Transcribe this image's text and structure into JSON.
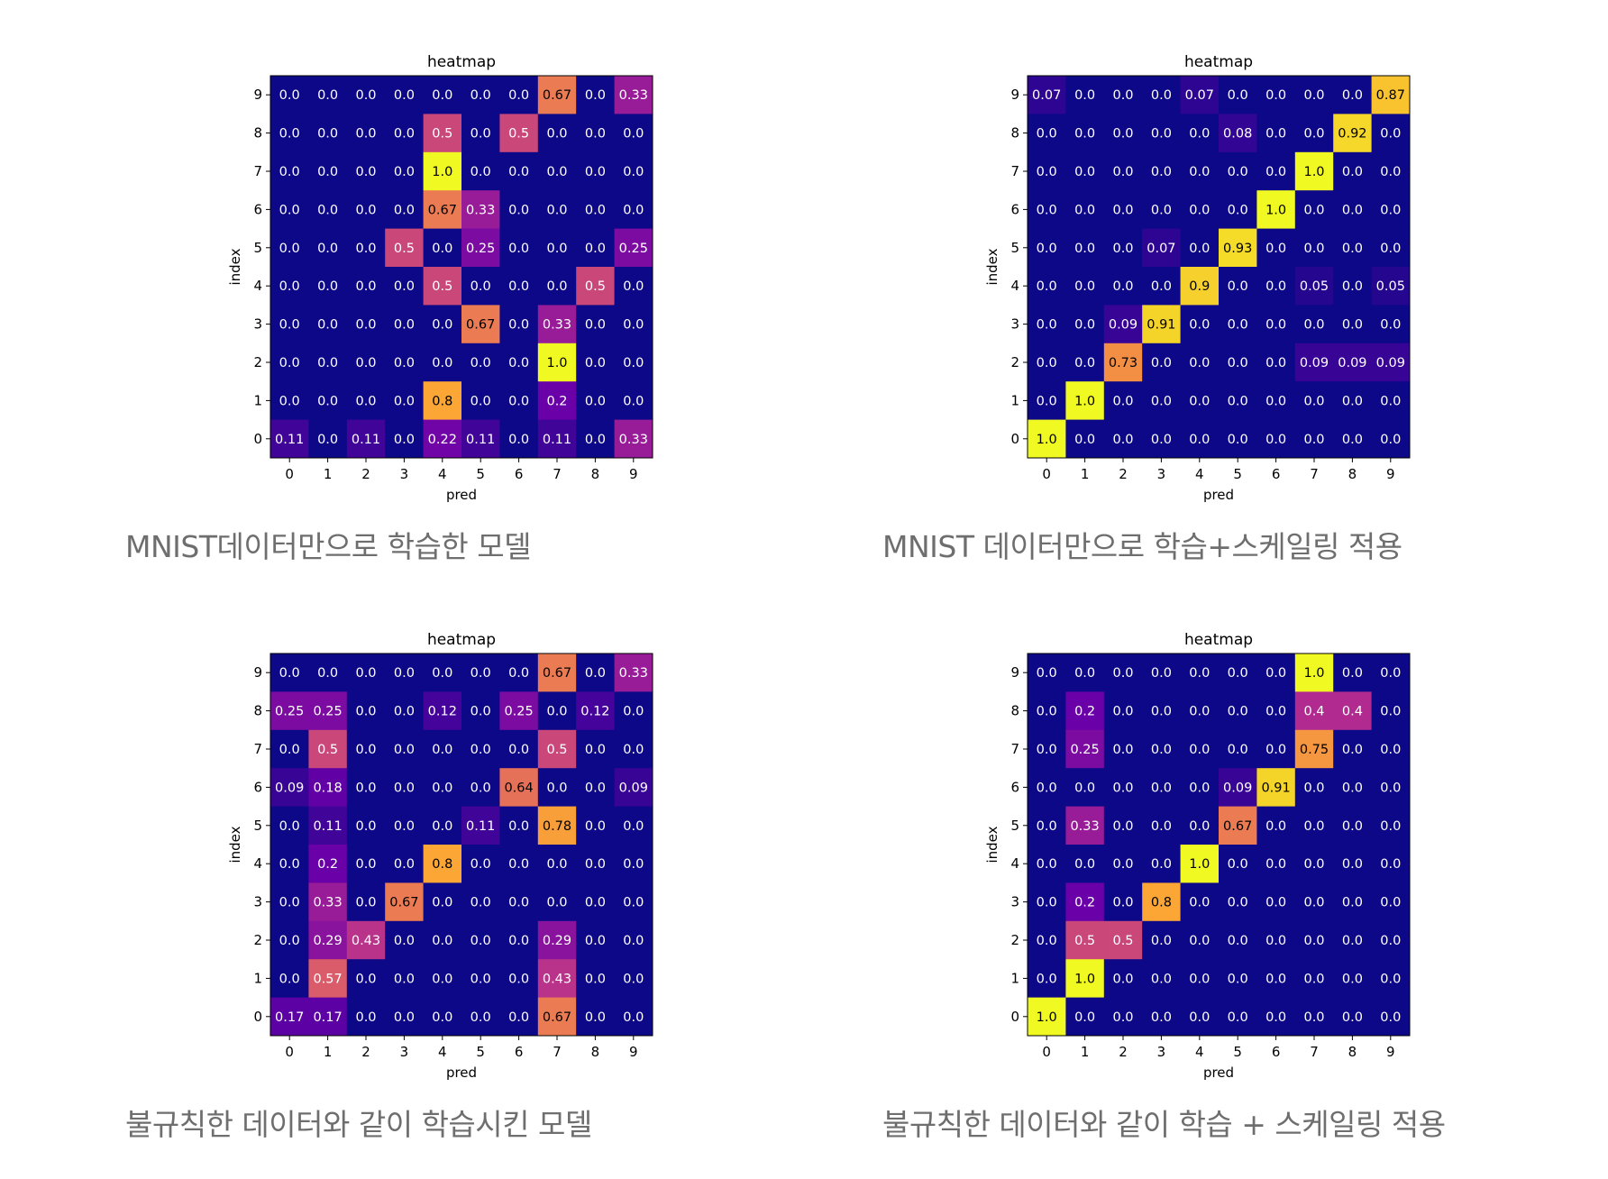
{
  "colormap": [
    "#0d0887",
    "#6a00a8",
    "#b12a90",
    "#e16462",
    "#fca636",
    "#f0f921"
  ],
  "chart_data": [
    {
      "type": "heatmap",
      "title": "heatmap",
      "xlabel": "pred",
      "ylabel": "index",
      "x_ticks": [
        "0",
        "1",
        "2",
        "3",
        "4",
        "5",
        "6",
        "7",
        "8",
        "9"
      ],
      "y_ticks": [
        "0",
        "1",
        "2",
        "3",
        "4",
        "5",
        "6",
        "7",
        "8",
        "9"
      ],
      "colormap": "plasma",
      "caption": "MNIST데이터만으로 학습한 모델",
      "rows": [
        {
          "index": "9",
          "values": [
            "0.0",
            "0.0",
            "0.0",
            "0.0",
            "0.0",
            "0.0",
            "0.0",
            "0.67",
            "0.0",
            "0.33"
          ]
        },
        {
          "index": "8",
          "values": [
            "0.0",
            "0.0",
            "0.0",
            "0.0",
            "0.5",
            "0.0",
            "0.5",
            "0.0",
            "0.0",
            "0.0"
          ]
        },
        {
          "index": "7",
          "values": [
            "0.0",
            "0.0",
            "0.0",
            "0.0",
            "1.0",
            "0.0",
            "0.0",
            "0.0",
            "0.0",
            "0.0"
          ]
        },
        {
          "index": "6",
          "values": [
            "0.0",
            "0.0",
            "0.0",
            "0.0",
            "0.67",
            "0.33",
            "0.0",
            "0.0",
            "0.0",
            "0.0"
          ]
        },
        {
          "index": "5",
          "values": [
            "0.0",
            "0.0",
            "0.0",
            "0.5",
            "0.0",
            "0.25",
            "0.0",
            "0.0",
            "0.0",
            "0.25"
          ]
        },
        {
          "index": "4",
          "values": [
            "0.0",
            "0.0",
            "0.0",
            "0.0",
            "0.5",
            "0.0",
            "0.0",
            "0.0",
            "0.5",
            "0.0"
          ]
        },
        {
          "index": "3",
          "values": [
            "0.0",
            "0.0",
            "0.0",
            "0.0",
            "0.0",
            "0.67",
            "0.0",
            "0.33",
            "0.0",
            "0.0"
          ]
        },
        {
          "index": "2",
          "values": [
            "0.0",
            "0.0",
            "0.0",
            "0.0",
            "0.0",
            "0.0",
            "0.0",
            "1.0",
            "0.0",
            "0.0"
          ]
        },
        {
          "index": "1",
          "values": [
            "0.0",
            "0.0",
            "0.0",
            "0.0",
            "0.8",
            "0.0",
            "0.0",
            "0.2",
            "0.0",
            "0.0"
          ]
        },
        {
          "index": "0",
          "values": [
            "0.11",
            "0.0",
            "0.11",
            "0.0",
            "0.22",
            "0.11",
            "0.0",
            "0.11",
            "0.0",
            "0.33"
          ]
        }
      ]
    },
    {
      "type": "heatmap",
      "title": "heatmap",
      "xlabel": "pred",
      "ylabel": "index",
      "x_ticks": [
        "0",
        "1",
        "2",
        "3",
        "4",
        "5",
        "6",
        "7",
        "8",
        "9"
      ],
      "y_ticks": [
        "0",
        "1",
        "2",
        "3",
        "4",
        "5",
        "6",
        "7",
        "8",
        "9"
      ],
      "colormap": "plasma",
      "caption": "MNIST 데이터만으로 학습+스케일링 적용",
      "rows": [
        {
          "index": "9",
          "values": [
            "0.07",
            "0.0",
            "0.0",
            "0.0",
            "0.07",
            "0.0",
            "0.0",
            "0.0",
            "0.0",
            "0.87"
          ]
        },
        {
          "index": "8",
          "values": [
            "0.0",
            "0.0",
            "0.0",
            "0.0",
            "0.0",
            "0.08",
            "0.0",
            "0.0",
            "0.92",
            "0.0"
          ]
        },
        {
          "index": "7",
          "values": [
            "0.0",
            "0.0",
            "0.0",
            "0.0",
            "0.0",
            "0.0",
            "0.0",
            "1.0",
            "0.0",
            "0.0"
          ]
        },
        {
          "index": "6",
          "values": [
            "0.0",
            "0.0",
            "0.0",
            "0.0",
            "0.0",
            "0.0",
            "1.0",
            "0.0",
            "0.0",
            "0.0"
          ]
        },
        {
          "index": "5",
          "values": [
            "0.0",
            "0.0",
            "0.0",
            "0.07",
            "0.0",
            "0.93",
            "0.0",
            "0.0",
            "0.0",
            "0.0"
          ]
        },
        {
          "index": "4",
          "values": [
            "0.0",
            "0.0",
            "0.0",
            "0.0",
            "0.9",
            "0.0",
            "0.0",
            "0.05",
            "0.0",
            "0.05"
          ]
        },
        {
          "index": "3",
          "values": [
            "0.0",
            "0.0",
            "0.09",
            "0.91",
            "0.0",
            "0.0",
            "0.0",
            "0.0",
            "0.0",
            "0.0"
          ]
        },
        {
          "index": "2",
          "values": [
            "0.0",
            "0.0",
            "0.73",
            "0.0",
            "0.0",
            "0.0",
            "0.0",
            "0.09",
            "0.09",
            "0.09"
          ]
        },
        {
          "index": "1",
          "values": [
            "0.0",
            "1.0",
            "0.0",
            "0.0",
            "0.0",
            "0.0",
            "0.0",
            "0.0",
            "0.0",
            "0.0"
          ]
        },
        {
          "index": "0",
          "values": [
            "1.0",
            "0.0",
            "0.0",
            "0.0",
            "0.0",
            "0.0",
            "0.0",
            "0.0",
            "0.0",
            "0.0"
          ]
        }
      ]
    },
    {
      "type": "heatmap",
      "title": "heatmap",
      "xlabel": "pred",
      "ylabel": "index",
      "x_ticks": [
        "0",
        "1",
        "2",
        "3",
        "4",
        "5",
        "6",
        "7",
        "8",
        "9"
      ],
      "y_ticks": [
        "0",
        "1",
        "2",
        "3",
        "4",
        "5",
        "6",
        "7",
        "8",
        "9"
      ],
      "colormap": "plasma",
      "caption": "불규칙한 데이터와 같이 학습시킨 모델",
      "rows": [
        {
          "index": "9",
          "values": [
            "0.0",
            "0.0",
            "0.0",
            "0.0",
            "0.0",
            "0.0",
            "0.0",
            "0.67",
            "0.0",
            "0.33"
          ]
        },
        {
          "index": "8",
          "values": [
            "0.25",
            "0.25",
            "0.0",
            "0.0",
            "0.12",
            "0.0",
            "0.25",
            "0.0",
            "0.12",
            "0.0"
          ]
        },
        {
          "index": "7",
          "values": [
            "0.0",
            "0.5",
            "0.0",
            "0.0",
            "0.0",
            "0.0",
            "0.0",
            "0.5",
            "0.0",
            "0.0"
          ]
        },
        {
          "index": "6",
          "values": [
            "0.09",
            "0.18",
            "0.0",
            "0.0",
            "0.0",
            "0.0",
            "0.64",
            "0.0",
            "0.0",
            "0.09"
          ]
        },
        {
          "index": "5",
          "values": [
            "0.0",
            "0.11",
            "0.0",
            "0.0",
            "0.0",
            "0.11",
            "0.0",
            "0.78",
            "0.0",
            "0.0"
          ]
        },
        {
          "index": "4",
          "values": [
            "0.0",
            "0.2",
            "0.0",
            "0.0",
            "0.8",
            "0.0",
            "0.0",
            "0.0",
            "0.0",
            "0.0"
          ]
        },
        {
          "index": "3",
          "values": [
            "0.0",
            "0.33",
            "0.0",
            "0.67",
            "0.0",
            "0.0",
            "0.0",
            "0.0",
            "0.0",
            "0.0"
          ]
        },
        {
          "index": "2",
          "values": [
            "0.0",
            "0.29",
            "0.43",
            "0.0",
            "0.0",
            "0.0",
            "0.0",
            "0.29",
            "0.0",
            "0.0"
          ]
        },
        {
          "index": "1",
          "values": [
            "0.0",
            "0.57",
            "0.0",
            "0.0",
            "0.0",
            "0.0",
            "0.0",
            "0.43",
            "0.0",
            "0.0"
          ]
        },
        {
          "index": "0",
          "values": [
            "0.17",
            "0.17",
            "0.0",
            "0.0",
            "0.0",
            "0.0",
            "0.0",
            "0.67",
            "0.0",
            "0.0"
          ]
        }
      ]
    },
    {
      "type": "heatmap",
      "title": "heatmap",
      "xlabel": "pred",
      "ylabel": "index",
      "x_ticks": [
        "0",
        "1",
        "2",
        "3",
        "4",
        "5",
        "6",
        "7",
        "8",
        "9"
      ],
      "y_ticks": [
        "0",
        "1",
        "2",
        "3",
        "4",
        "5",
        "6",
        "7",
        "8",
        "9"
      ],
      "colormap": "plasma",
      "caption": "불규칙한 데이터와 같이 학습 + 스케일링 적용",
      "rows": [
        {
          "index": "9",
          "values": [
            "0.0",
            "0.0",
            "0.0",
            "0.0",
            "0.0",
            "0.0",
            "0.0",
            "1.0",
            "0.0",
            "0.0"
          ]
        },
        {
          "index": "8",
          "values": [
            "0.0",
            "0.2",
            "0.0",
            "0.0",
            "0.0",
            "0.0",
            "0.0",
            "0.4",
            "0.4",
            "0.0"
          ]
        },
        {
          "index": "7",
          "values": [
            "0.0",
            "0.25",
            "0.0",
            "0.0",
            "0.0",
            "0.0",
            "0.0",
            "0.75",
            "0.0",
            "0.0"
          ]
        },
        {
          "index": "6",
          "values": [
            "0.0",
            "0.0",
            "0.0",
            "0.0",
            "0.0",
            "0.09",
            "0.91",
            "0.0",
            "0.0",
            "0.0"
          ]
        },
        {
          "index": "5",
          "values": [
            "0.0",
            "0.33",
            "0.0",
            "0.0",
            "0.0",
            "0.67",
            "0.0",
            "0.0",
            "0.0",
            "0.0"
          ]
        },
        {
          "index": "4",
          "values": [
            "0.0",
            "0.0",
            "0.0",
            "0.0",
            "1.0",
            "0.0",
            "0.0",
            "0.0",
            "0.0",
            "0.0"
          ]
        },
        {
          "index": "3",
          "values": [
            "0.0",
            "0.2",
            "0.0",
            "0.8",
            "0.0",
            "0.0",
            "0.0",
            "0.0",
            "0.0",
            "0.0"
          ]
        },
        {
          "index": "2",
          "values": [
            "0.0",
            "0.5",
            "0.5",
            "0.0",
            "0.0",
            "0.0",
            "0.0",
            "0.0",
            "0.0",
            "0.0"
          ]
        },
        {
          "index": "1",
          "values": [
            "0.0",
            "1.0",
            "0.0",
            "0.0",
            "0.0",
            "0.0",
            "0.0",
            "0.0",
            "0.0",
            "0.0"
          ]
        },
        {
          "index": "0",
          "values": [
            "1.0",
            "0.0",
            "0.0",
            "0.0",
            "0.0",
            "0.0",
            "0.0",
            "0.0",
            "0.0",
            "0.0"
          ]
        }
      ]
    }
  ]
}
